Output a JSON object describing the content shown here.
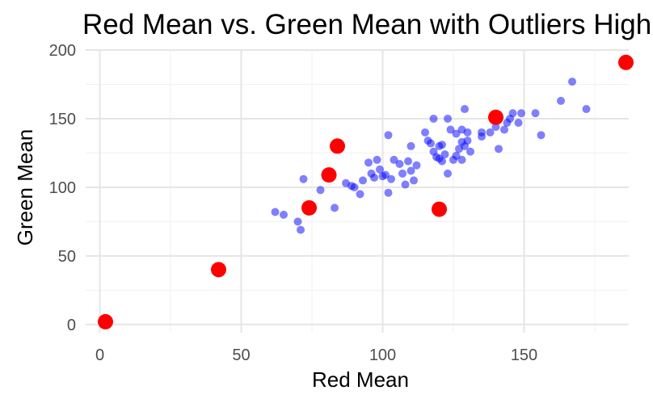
{
  "chart_data": {
    "type": "scatter",
    "title": "Red Mean vs. Green Mean with Outliers Highlighted",
    "xlabel": "Red Mean",
    "ylabel": "Green Mean",
    "xlim": [
      -5,
      187
    ],
    "ylim": [
      -6,
      200
    ],
    "x_ticks": [
      0,
      50,
      100,
      150
    ],
    "y_ticks": [
      0,
      50,
      100,
      150,
      200
    ],
    "grid": true,
    "legend": "none",
    "series": [
      {
        "color": "#0000ff",
        "points": [
          [
            62,
            82
          ],
          [
            65,
            80
          ],
          [
            70,
            75
          ],
          [
            71,
            69
          ],
          [
            72,
            106
          ],
          [
            78,
            98
          ],
          [
            83,
            85
          ],
          [
            87,
            103
          ],
          [
            89,
            101
          ],
          [
            90,
            100
          ],
          [
            92,
            95
          ],
          [
            93,
            105
          ],
          [
            95,
            118
          ],
          [
            96,
            110
          ],
          [
            97,
            107
          ],
          [
            98,
            120
          ],
          [
            99,
            113
          ],
          [
            100,
            108
          ],
          [
            101,
            109
          ],
          [
            102,
            96
          ],
          [
            102,
            138
          ],
          [
            103,
            106
          ],
          [
            104,
            120
          ],
          [
            106,
            117
          ],
          [
            107,
            110
          ],
          [
            108,
            102
          ],
          [
            109,
            119
          ],
          [
            110,
            112
          ],
          [
            110,
            130
          ],
          [
            111,
            105
          ],
          [
            112,
            116
          ],
          [
            115,
            140
          ],
          [
            116,
            134
          ],
          [
            117,
            132
          ],
          [
            118,
            150
          ],
          [
            118,
            126
          ],
          [
            119,
            122
          ],
          [
            120,
            130
          ],
          [
            120,
            121
          ],
          [
            121,
            131
          ],
          [
            121,
            119
          ],
          [
            122,
            124
          ],
          [
            123,
            110
          ],
          [
            123,
            150
          ],
          [
            124,
            142
          ],
          [
            125,
            120
          ],
          [
            126,
            123
          ],
          [
            126,
            139
          ],
          [
            127,
            128
          ],
          [
            128,
            120
          ],
          [
            128,
            133
          ],
          [
            128,
            142
          ],
          [
            129,
            157
          ],
          [
            129,
            130
          ],
          [
            130,
            140
          ],
          [
            130,
            134
          ],
          [
            131,
            126
          ],
          [
            135,
            137
          ],
          [
            135,
            140
          ],
          [
            138,
            140
          ],
          [
            140,
            144
          ],
          [
            141,
            128
          ],
          [
            143,
            142
          ],
          [
            144,
            147
          ],
          [
            145,
            150
          ],
          [
            146,
            154
          ],
          [
            148,
            147
          ],
          [
            149,
            154
          ],
          [
            154,
            154
          ],
          [
            156,
            138
          ],
          [
            163,
            163
          ],
          [
            167,
            177
          ],
          [
            172,
            157
          ]
        ]
      },
      {
        "color": "#ff0000",
        "points": [
          [
            2,
            2
          ],
          [
            42,
            40
          ],
          [
            74,
            85
          ],
          [
            81,
            109
          ],
          [
            84,
            130
          ],
          [
            120,
            84
          ],
          [
            140,
            151
          ],
          [
            186,
            191
          ]
        ]
      }
    ]
  }
}
